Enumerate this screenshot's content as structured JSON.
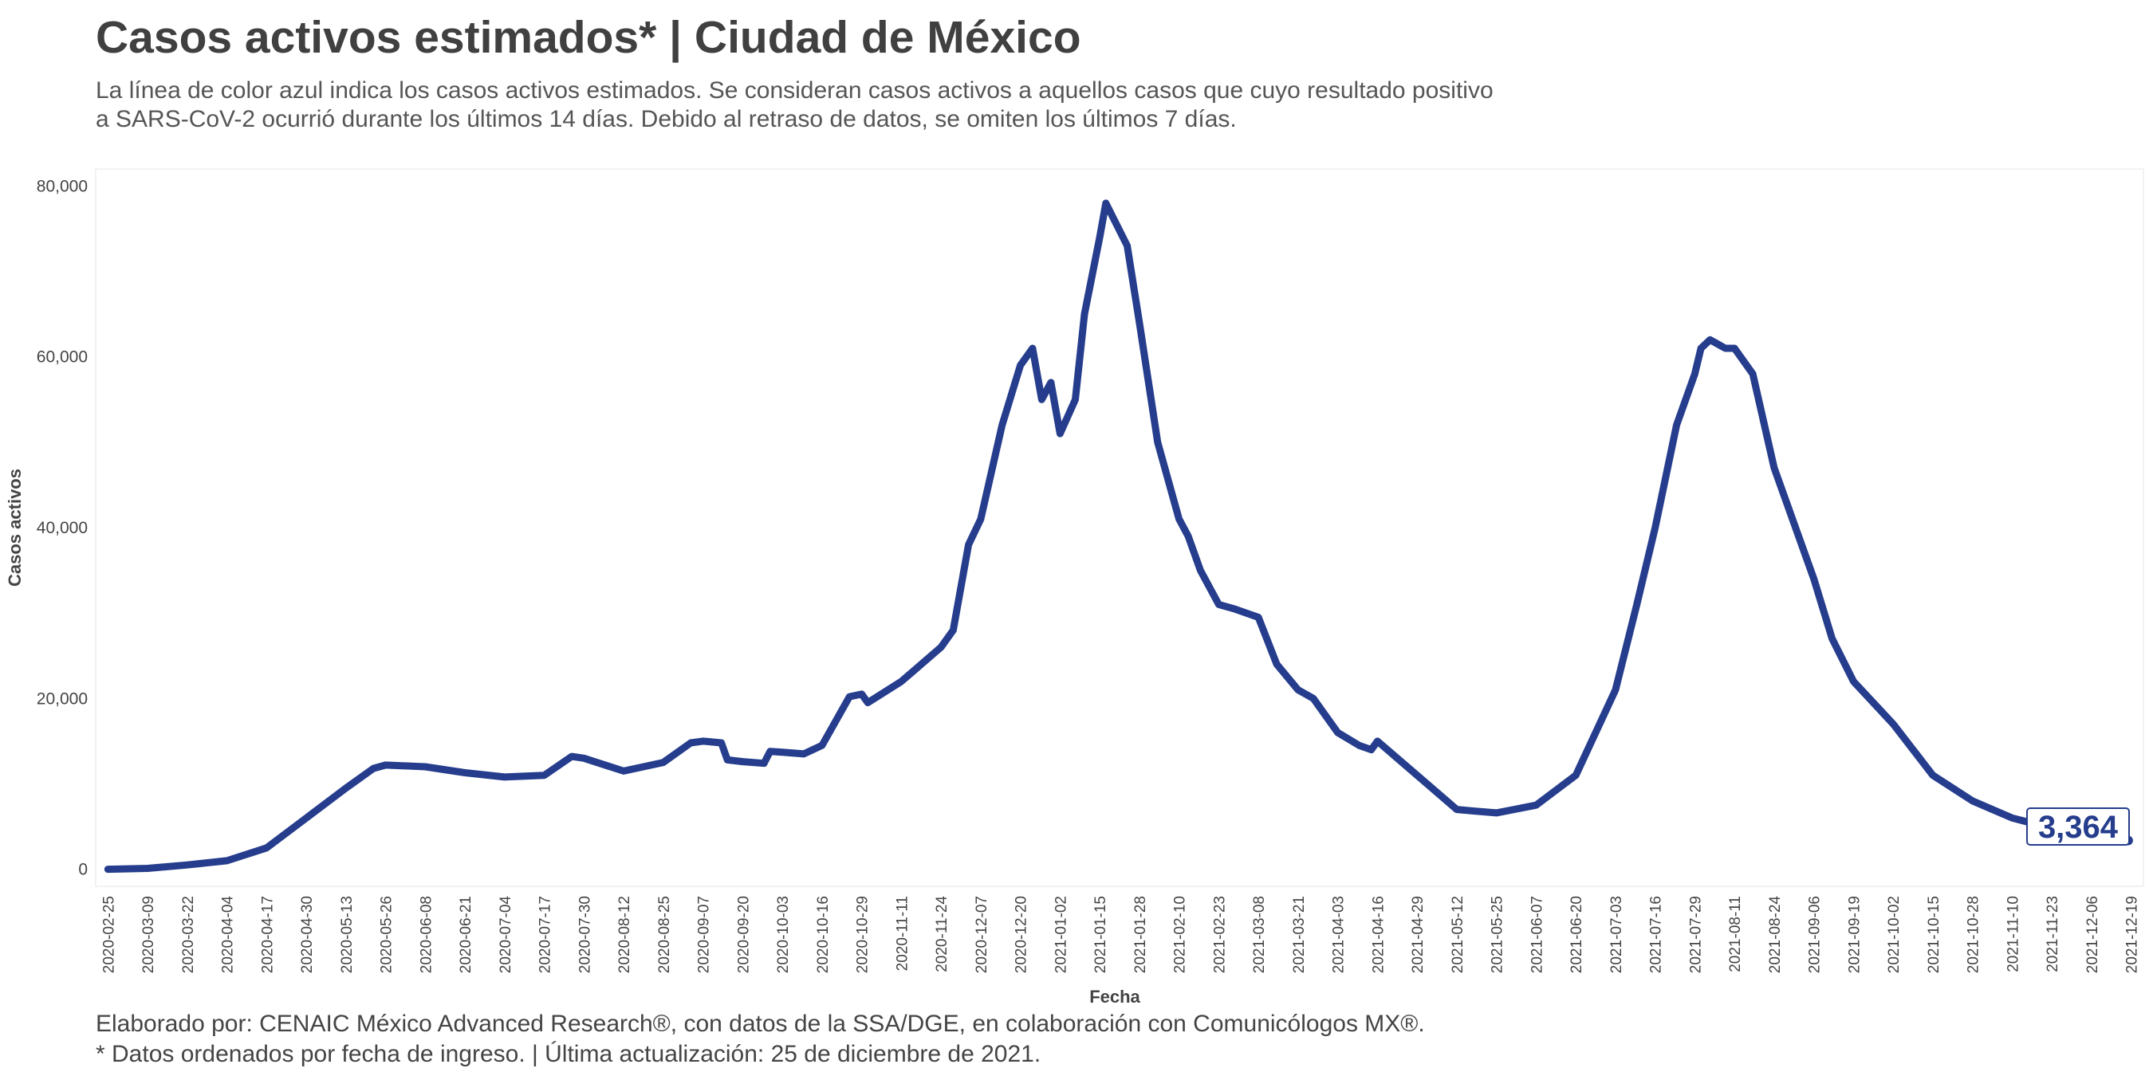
{
  "title": "Casos activos estimados* | Ciudad de México",
  "subtitle_line1": "La línea de color azul indica los casos activos estimados. Se consideran casos activos a aquellos casos que cuyo resultado positivo",
  "subtitle_line2": "a SARS-CoV-2 ocurrió durante los últimos 14 días. Debido al retraso de datos, se omiten los últimos 7 días.",
  "caption_line1": "Elaborado por: CENAIC México Advanced Research®, con datos de la SSA/DGE, en colaboración con Comunicólogos MX®.",
  "caption_line2": "* Datos ordenados por fecha de ingreso. | Última actualización: 25 de diciembre de 2021.",
  "colors": {
    "line": "#253d8c",
    "text": "#444444",
    "panel_border": "#e6e6e6"
  },
  "chart_data": {
    "type": "line",
    "xlabel": "Fecha",
    "ylabel": "Casos activos",
    "ylim": [
      -2000,
      82000
    ],
    "yticks": [
      0,
      20000,
      40000,
      60000,
      80000
    ],
    "ytick_labels": [
      "0",
      "20,000",
      "40,000",
      "60,000",
      "80,000"
    ],
    "xlim": [
      "2020-02-21",
      "2021-12-23"
    ],
    "xticks": [
      "2020-02-25",
      "2020-03-09",
      "2020-03-22",
      "2020-04-04",
      "2020-04-17",
      "2020-04-30",
      "2020-05-13",
      "2020-05-26",
      "2020-06-08",
      "2020-06-21",
      "2020-07-04",
      "2020-07-17",
      "2020-07-30",
      "2020-08-12",
      "2020-08-25",
      "2020-09-07",
      "2020-09-20",
      "2020-10-03",
      "2020-10-16",
      "2020-10-29",
      "2020-11-11",
      "2020-11-24",
      "2020-12-07",
      "2020-12-20",
      "2021-01-02",
      "2021-01-15",
      "2021-01-28",
      "2021-02-10",
      "2021-02-23",
      "2021-03-08",
      "2021-03-21",
      "2021-04-03",
      "2021-04-16",
      "2021-04-29",
      "2021-05-12",
      "2021-05-25",
      "2021-06-07",
      "2021-06-20",
      "2021-07-03",
      "2021-07-16",
      "2021-07-29",
      "2021-08-11",
      "2021-08-24",
      "2021-09-06",
      "2021-09-19",
      "2021-10-02",
      "2021-10-15",
      "2021-10-28",
      "2021-11-10",
      "2021-11-23",
      "2021-12-06",
      "2021-12-19"
    ],
    "grid": false,
    "series": [
      {
        "x": [
          "2020-02-25",
          "2020-03-09",
          "2020-03-22",
          "2020-04-04",
          "2020-04-17",
          "2020-04-30",
          "2020-05-13",
          "2020-05-22",
          "2020-05-26",
          "2020-06-08",
          "2020-06-21",
          "2020-07-04",
          "2020-07-17",
          "2020-07-26",
          "2020-07-30",
          "2020-08-12",
          "2020-08-25",
          "2020-09-03",
          "2020-09-07",
          "2020-09-13",
          "2020-09-15",
          "2020-09-20",
          "2020-09-27",
          "2020-09-29",
          "2020-10-03",
          "2020-10-10",
          "2020-10-16",
          "2020-10-25",
          "2020-10-29",
          "2020-10-31",
          "2020-11-11",
          "2020-11-24",
          "2020-11-28",
          "2020-12-03",
          "2020-12-07",
          "2020-12-14",
          "2020-12-20",
          "2020-12-24",
          "2020-12-27",
          "2020-12-30",
          "2021-01-02",
          "2021-01-07",
          "2021-01-10",
          "2021-01-15",
          "2021-01-17",
          "2021-01-24",
          "2021-01-28",
          "2021-02-03",
          "2021-02-10",
          "2021-02-13",
          "2021-02-17",
          "2021-02-23",
          "2021-02-28",
          "2021-03-08",
          "2021-03-14",
          "2021-03-21",
          "2021-03-26",
          "2021-04-03",
          "2021-04-10",
          "2021-04-14",
          "2021-04-16",
          "2021-04-29",
          "2021-05-12",
          "2021-05-18",
          "2021-05-25",
          "2021-06-07",
          "2021-06-20",
          "2021-07-03",
          "2021-07-10",
          "2021-07-16",
          "2021-07-23",
          "2021-07-29",
          "2021-07-31",
          "2021-08-03",
          "2021-08-08",
          "2021-08-11",
          "2021-08-17",
          "2021-08-24",
          "2021-09-06",
          "2021-09-12",
          "2021-09-19",
          "2021-10-02",
          "2021-10-15",
          "2021-10-28",
          "2021-11-10",
          "2021-11-23",
          "2021-12-06",
          "2021-12-18"
        ],
        "y": [
          0,
          100,
          500,
          1000,
          2500,
          6000,
          9500,
          11800,
          12200,
          12000,
          11300,
          10800,
          11000,
          13200,
          13000,
          11500,
          12500,
          14800,
          15000,
          14800,
          12800,
          12600,
          12400,
          13800,
          13700,
          13500,
          14500,
          20200,
          20500,
          19500,
          22000,
          26000,
          28000,
          38000,
          41000,
          52000,
          59000,
          61000,
          55000,
          57000,
          51000,
          55000,
          65000,
          74000,
          78000,
          73000,
          64000,
          50000,
          41000,
          39000,
          35000,
          31000,
          30500,
          29500,
          24000,
          21000,
          20000,
          16000,
          14500,
          14000,
          15000,
          11000,
          7000,
          6800,
          6600,
          7500,
          11000,
          21000,
          31000,
          40000,
          52000,
          58000,
          61000,
          62000,
          61000,
          61000,
          58000,
          47000,
          34000,
          27000,
          22000,
          17000,
          11000,
          8000,
          6000,
          4800,
          4000,
          3364
        ]
      }
    ],
    "end_label": "3,364"
  }
}
